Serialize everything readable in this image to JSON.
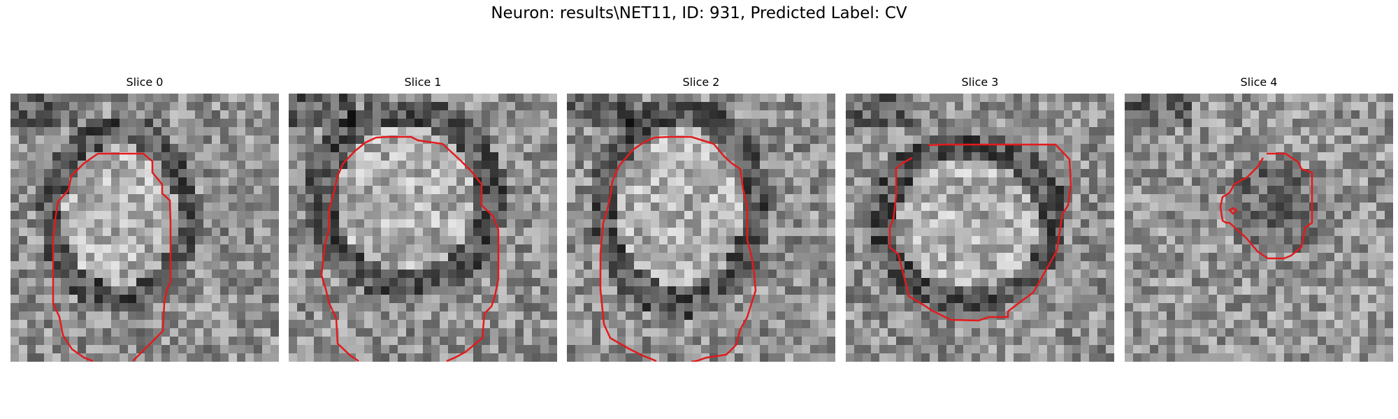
{
  "figure": {
    "title": "Neuron: results\\NET11, ID: 931, Predicted Label: CV"
  },
  "panels": [
    {
      "title": "Slice 0"
    },
    {
      "title": "Slice 1"
    },
    {
      "title": "Slice 2"
    },
    {
      "title": "Slice 3"
    },
    {
      "title": "Slice 4"
    }
  ],
  "colors": {
    "contour": "#e31a1c",
    "background": "#ffffff"
  }
}
